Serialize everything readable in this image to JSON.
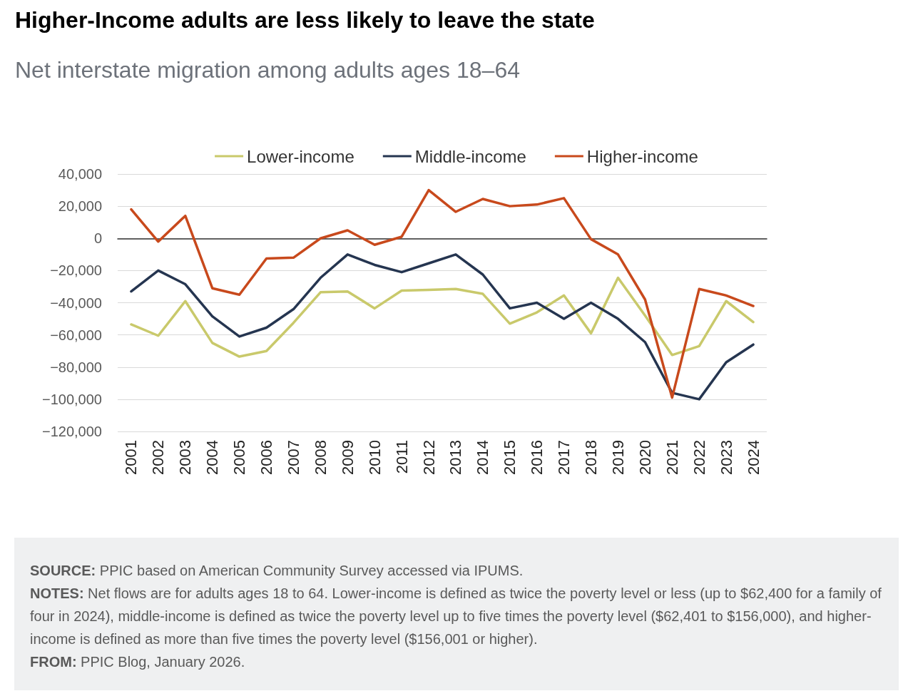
{
  "chart_data": {
    "type": "line",
    "title": "Higher-Income adults are less likely to leave the state",
    "subtitle": "Net interstate migration among adults ages 18–64",
    "categories": [
      "2001",
      "2002",
      "2003",
      "2004",
      "2005",
      "2006",
      "2007",
      "2008",
      "2009",
      "2010",
      "2011",
      "2012",
      "2013",
      "2014",
      "2015",
      "2016",
      "2017",
      "2018",
      "2019",
      "2020",
      "2021",
      "2022",
      "2023",
      "2024"
    ],
    "series": [
      {
        "name": "Lower-income",
        "color": "#c9c96b",
        "values": [
          -53500,
          -60500,
          -39000,
          -65000,
          -73500,
          -70000,
          -52500,
          -33500,
          -33000,
          -43500,
          -32500,
          -32000,
          -31500,
          -34500,
          -53000,
          -46000,
          -35500,
          -59000,
          -24500,
          -48000,
          -72500,
          -67000,
          -39000,
          -52000
        ]
      },
      {
        "name": "Middle-income",
        "color": "#253550",
        "values": [
          -33000,
          -20000,
          -28500,
          -48500,
          -61000,
          -55500,
          -44000,
          -24500,
          -10000,
          -16500,
          -21000,
          -15500,
          -10000,
          -22500,
          -43500,
          -40000,
          -50000,
          -40000,
          -50000,
          -64500,
          -96000,
          -100000,
          -77000,
          -66000
        ]
      },
      {
        "name": "Higher-income",
        "color": "#c8491c",
        "values": [
          18000,
          -2000,
          14000,
          -31000,
          -35000,
          -12500,
          -12000,
          0,
          5000,
          -4000,
          1000,
          30000,
          16500,
          24500,
          20000,
          21000,
          25000,
          -500,
          -10000,
          -38000,
          -99000,
          -31500,
          -35500,
          -42000
        ]
      }
    ],
    "ylim": [
      -120000,
      40000
    ],
    "yticks": [
      {
        "value": -120000,
        "label": "−120,000"
      },
      {
        "value": -100000,
        "label": "−100,000"
      },
      {
        "value": -80000,
        "label": "−80,000"
      },
      {
        "value": -60000,
        "label": "−60,000"
      },
      {
        "value": -40000,
        "label": "−40,000"
      },
      {
        "value": -20000,
        "label": "−20,000"
      },
      {
        "value": 0,
        "label": "0"
      },
      {
        "value": 20000,
        "label": "20,000"
      },
      {
        "value": 40000,
        "label": "40,000"
      }
    ],
    "grid": "y",
    "legend": "top",
    "marker": "none",
    "line_style": "solid",
    "annotations": [
      "SOURCE: PPIC based on American Community Survey accessed via IPUMS.",
      "NOTES: Net flows are for adults ages 18 to 64. Lower-income is defined as twice the poverty level or less (up to $62,400 for a family of four in 2024), middle-income is defined as twice the poverty level up to five times the poverty level ($62,401 to $156,000), and higher-income is defined as more than five times the poverty level ($156,001 or higher).",
      "FROM: PPIC Blog, January 2026."
    ]
  }
}
